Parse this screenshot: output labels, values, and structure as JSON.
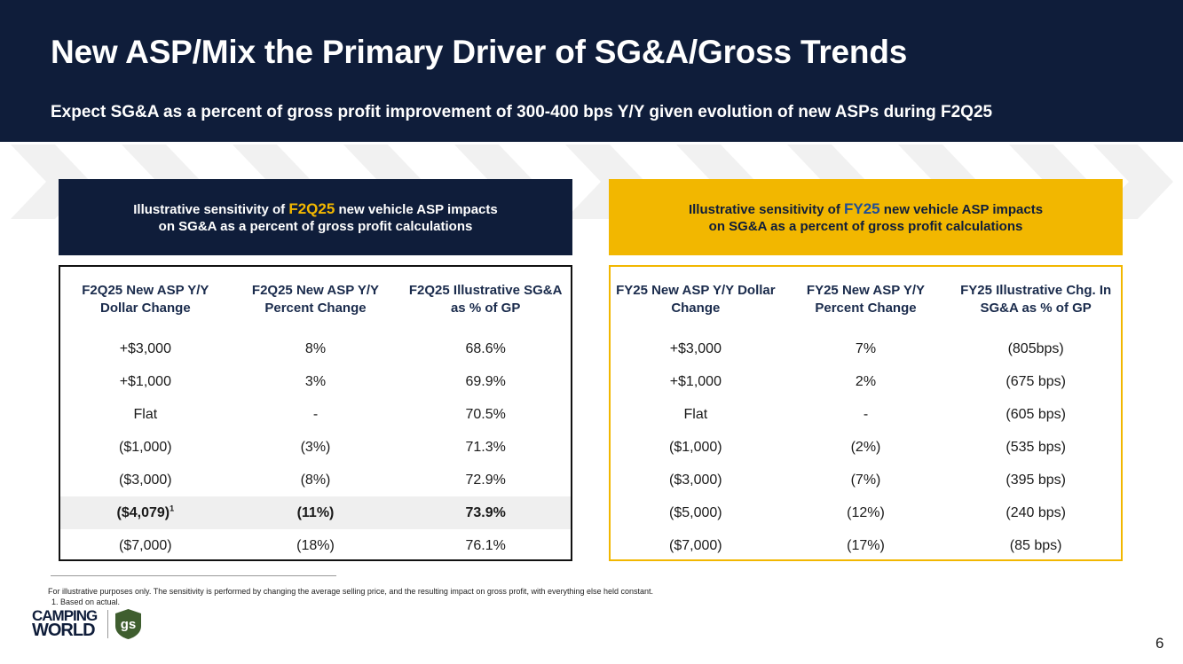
{
  "slide": {
    "title": "New ASP/Mix the Primary Driver of SG&A/Gross Trends",
    "subtitle": "Expect SG&A as a percent of gross profit improvement of 300-400 bps Y/Y given evolution of new ASPs during F2Q25",
    "page_number": "6"
  },
  "colors": {
    "navy": "#0f1d3a",
    "gold": "#f2b700",
    "blue_highlight": "#1f4e97",
    "row_highlight": "#efefef"
  },
  "left_panel": {
    "heading_pre": "Illustrative sensitivity of ",
    "heading_highlight": "F2Q25",
    "heading_post": " new vehicle ASP impacts",
    "heading_line2": "on SG&A as a percent of gross profit calculations",
    "columns": [
      "F2Q25 New ASP Y/Y Dollar Change",
      "F2Q25 New ASP Y/Y Percent Change",
      "F2Q25 Illustrative SG&A as % of GP"
    ],
    "rows": [
      [
        "+$3,000",
        "8%",
        "68.6%"
      ],
      [
        "+$1,000",
        "3%",
        "69.9%"
      ],
      [
        "Flat",
        "-",
        "70.5%"
      ],
      [
        "($1,000)",
        "(3%)",
        "71.3%"
      ],
      [
        "($3,000)",
        "(8%)",
        "72.9%"
      ],
      [
        "($4,079)",
        "(11%)",
        "73.9%"
      ],
      [
        "($7,000)",
        "(18%)",
        "76.1%"
      ]
    ],
    "highlight_row_footnote": "1"
  },
  "right_panel": {
    "heading_pre": "Illustrative sensitivity of ",
    "heading_highlight": "FY25",
    "heading_post": " new vehicle ASP impacts",
    "heading_line2": "on SG&A as a percent of gross profit calculations",
    "columns": [
      "FY25 New ASP Y/Y Dollar Change",
      "FY25 New ASP Y/Y Percent Change",
      "FY25 Illustrative Chg. In SG&A as % of GP"
    ],
    "rows": [
      [
        "+$3,000",
        "7%",
        "(805bps)"
      ],
      [
        "+$1,000",
        "2%",
        "(675 bps)"
      ],
      [
        "Flat",
        "-",
        "(605 bps)"
      ],
      [
        "($1,000)",
        "(2%)",
        "(535 bps)"
      ],
      [
        "($3,000)",
        "(7%)",
        "(395 bps)"
      ],
      [
        "($5,000)",
        "(12%)",
        "(240 bps)"
      ],
      [
        "($7,000)",
        "(17%)",
        "(85 bps)"
      ]
    ]
  },
  "footnotes": {
    "main": "For illustrative purposes only. The sensitivity is performed by changing the average selling price, and the resulting impact on gross profit, with everything else held constant.",
    "note1": "1. Based on actual."
  },
  "logos": {
    "camping_world_line1": "CAMPING",
    "camping_world_line2": "WORLD",
    "gs": "gs"
  }
}
